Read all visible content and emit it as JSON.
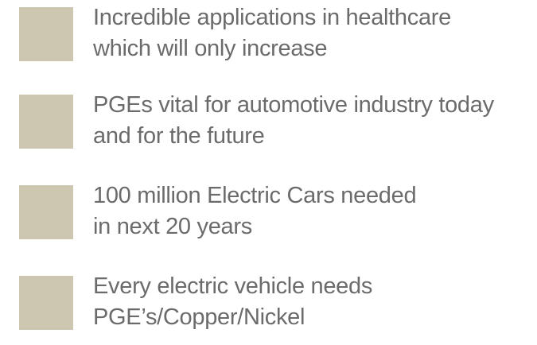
{
  "items": [
    {
      "lines": [
        "Incredible applications in healthcare",
        "which will only increase"
      ]
    },
    {
      "lines": [
        "PGEs vital for automotive industry today",
        "and for the future"
      ]
    },
    {
      "lines": [
        "100 million Electric Cars needed",
        "in next 20 years"
      ]
    },
    {
      "lines": [
        "Every electric vehicle needs",
        "PGE’s/Copper/Nickel"
      ]
    }
  ]
}
